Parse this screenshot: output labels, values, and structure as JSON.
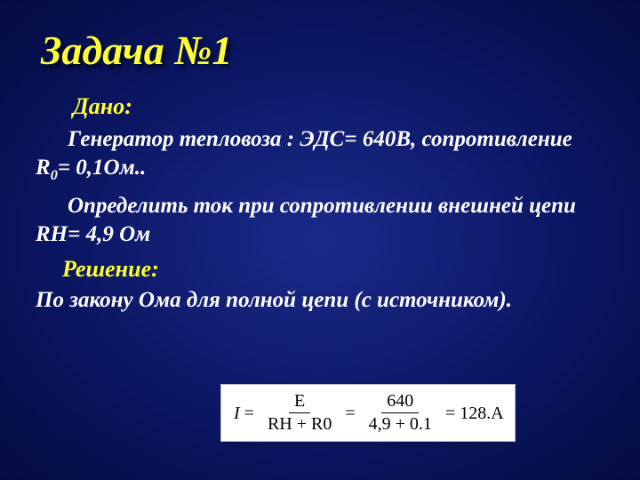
{
  "title": "Задача №1",
  "given_label": "Дано:",
  "line1_a": "Генератор тепловоза : ЭДС= 640В, сопротивление  R",
  "line1_sub": "0",
  "line1_b": "= 0,1Ом..",
  "line2": "Определить ток при сопротивлении внешней цепи RН= 4,9 Ом",
  "solution_label": "Решение:",
  "line3": "По закону Ома для полной цепи (с источником).",
  "formula": {
    "lhs": "I",
    "frac1_num": "E",
    "frac1_den": "RН + R0",
    "frac2_num": "640",
    "frac2_den": "4,9 + 0.1",
    "result": "128.А"
  },
  "colors": {
    "accent": "#ffff33",
    "text": "#ffffff",
    "formula_bg": "#ffffff",
    "formula_border": "#bdbdbd",
    "formula_text": "#000000"
  }
}
